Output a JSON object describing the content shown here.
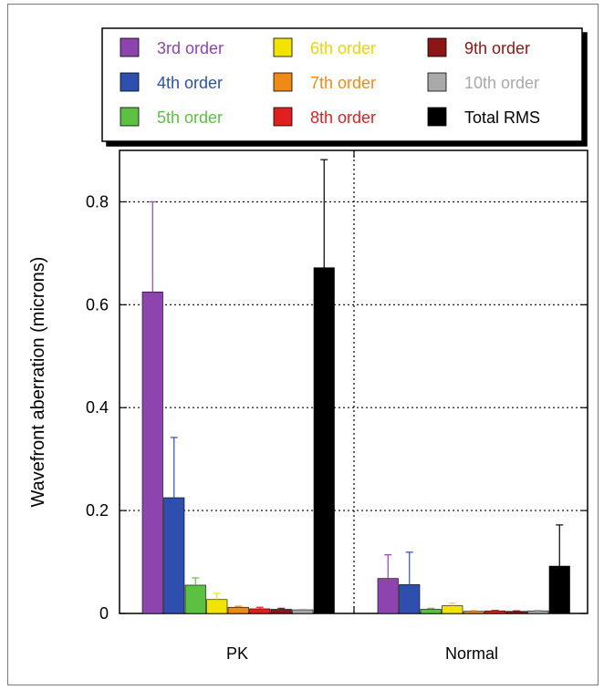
{
  "chart_data": {
    "type": "bar",
    "categories": [
      "PK",
      "Normal"
    ],
    "ylabel": "Wavefront aberration (microns)",
    "ylim": [
      0,
      0.9
    ],
    "yticks": [
      "0",
      "0.2",
      "0.4",
      "0.6",
      "0.8"
    ],
    "grid": true,
    "legend_position": "top",
    "series": [
      {
        "name": "3rd order",
        "color": "#8e44ad",
        "values": [
          0.625,
          0.068
        ],
        "errors": [
          0.175,
          0.046
        ]
      },
      {
        "name": "4th order",
        "color": "#2e4fae",
        "values": [
          0.225,
          0.056
        ],
        "errors": [
          0.117,
          0.063
        ]
      },
      {
        "name": "5th order",
        "color": "#5cc142",
        "values": [
          0.055,
          0.008
        ],
        "errors": [
          0.014,
          0.002
        ]
      },
      {
        "name": "6th order",
        "color": "#f2e300",
        "values": [
          0.027,
          0.015
        ],
        "errors": [
          0.012,
          0.005
        ]
      },
      {
        "name": "7th order",
        "color": "#f08a16",
        "values": [
          0.012,
          0.004
        ],
        "errors": [
          0.002,
          0.001
        ]
      },
      {
        "name": "8th order",
        "color": "#e02020",
        "values": [
          0.009,
          0.005
        ],
        "errors": [
          0.003,
          0.001
        ]
      },
      {
        "name": "9th order",
        "color": "#8c1515",
        "values": [
          0.008,
          0.004
        ],
        "errors": [
          0.002,
          0.001
        ]
      },
      {
        "name": "10th order",
        "color": "#a9a9a9",
        "values": [
          0.007,
          0.005
        ],
        "errors": [
          0.001,
          0.001
        ]
      },
      {
        "name": "Total RMS",
        "color": "#000000",
        "values": [
          0.672,
          0.092
        ],
        "errors": [
          0.21,
          0.08
        ]
      }
    ]
  }
}
